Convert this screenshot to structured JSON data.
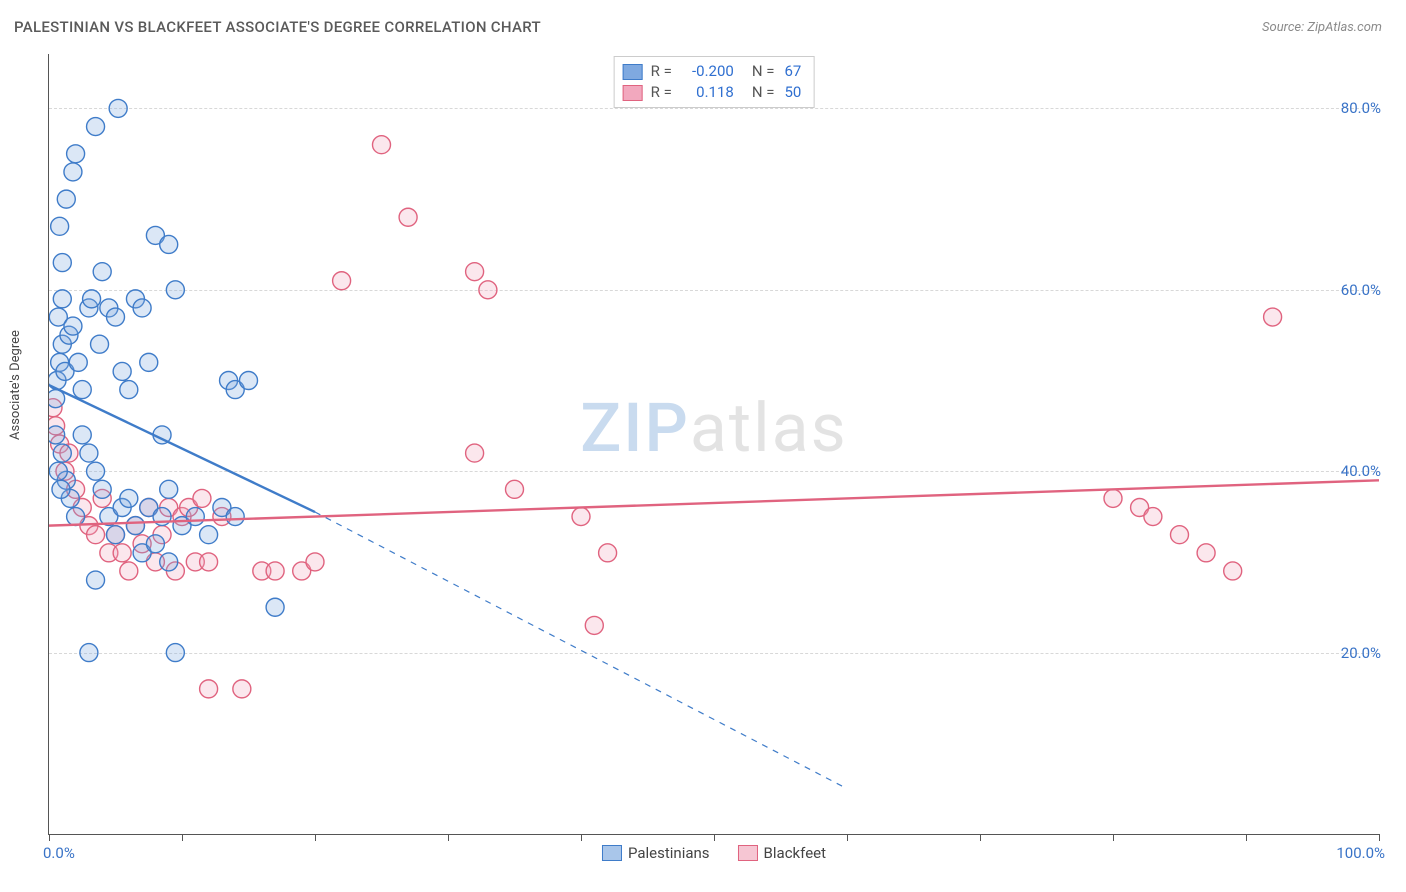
{
  "title": "PALESTINIAN VS BLACKFEET ASSOCIATE'S DEGREE CORRELATION CHART",
  "source": "Source: ZipAtlas.com",
  "ylabel": "Associate's Degree",
  "watermark": {
    "zip": "ZIP",
    "atlas": "atlas"
  },
  "chart": {
    "type": "scatter",
    "xlim": [
      0,
      100
    ],
    "ylim": [
      0,
      86
    ],
    "background_color": "#ffffff",
    "grid_color": "#d8d8d8",
    "grid_dash": "4,4",
    "yticks": [
      20,
      40,
      60,
      80
    ],
    "ytick_labels": [
      "20.0%",
      "40.0%",
      "60.0%",
      "80.0%"
    ],
    "xtick_positions": [
      0,
      10,
      20,
      30,
      40,
      50,
      60,
      70,
      80,
      90,
      100
    ],
    "xaxis_left_label": "0.0%",
    "xaxis_right_label": "100.0%",
    "marker_radius": 9,
    "marker_fill_opacity": 0.28,
    "marker_stroke_width": 1.4,
    "trend_line_width": 2.4,
    "trend_dash_width": 1.2,
    "series": [
      {
        "name": "Palestinians",
        "color_fill": "#7fa9e0",
        "color_stroke": "#3f7cc9",
        "r_value": "-0.200",
        "n_value": "67",
        "trend_solid": {
          "x1": 0,
          "y1": 49.5,
          "x2": 20,
          "y2": 35.5
        },
        "trend_dash": {
          "x1": 20,
          "y1": 35.5,
          "x2": 60,
          "y2": 5.0
        },
        "points": [
          [
            0.6,
            50
          ],
          [
            0.8,
            52
          ],
          [
            1.0,
            54
          ],
          [
            1.2,
            51
          ],
          [
            0.5,
            48
          ],
          [
            1.5,
            55
          ],
          [
            0.7,
            57
          ],
          [
            1.0,
            59
          ],
          [
            1.8,
            56
          ],
          [
            2.2,
            52
          ],
          [
            2.5,
            49
          ],
          [
            3.0,
            58
          ],
          [
            3.2,
            59
          ],
          [
            3.8,
            54
          ],
          [
            4.0,
            62
          ],
          [
            4.5,
            58
          ],
          [
            5.0,
            57
          ],
          [
            5.5,
            51
          ],
          [
            6.0,
            49
          ],
          [
            6.5,
            59
          ],
          [
            7.0,
            58
          ],
          [
            7.5,
            52
          ],
          [
            8.0,
            66
          ],
          [
            9.0,
            65
          ],
          [
            9.5,
            60
          ],
          [
            3.5,
            78
          ],
          [
            5.2,
            80
          ],
          [
            1.3,
            70
          ],
          [
            1.8,
            73
          ],
          [
            2.0,
            75
          ],
          [
            0.8,
            67
          ],
          [
            1.0,
            63
          ],
          [
            2.5,
            44
          ],
          [
            3.0,
            42
          ],
          [
            3.5,
            40
          ],
          [
            4.0,
            38
          ],
          [
            4.5,
            35
          ],
          [
            5.0,
            33
          ],
          [
            5.5,
            36
          ],
          [
            6.0,
            37
          ],
          [
            6.5,
            34
          ],
          [
            7.0,
            31
          ],
          [
            7.5,
            36
          ],
          [
            8.0,
            32
          ],
          [
            8.5,
            35
          ],
          [
            9.0,
            30
          ],
          [
            1.0,
            42
          ],
          [
            1.3,
            39
          ],
          [
            1.6,
            37
          ],
          [
            2.0,
            35
          ],
          [
            0.5,
            44
          ],
          [
            0.7,
            40
          ],
          [
            0.9,
            38
          ],
          [
            3.0,
            20
          ],
          [
            9.5,
            20
          ],
          [
            3.5,
            28
          ],
          [
            13.5,
            50
          ],
          [
            14.0,
            49
          ],
          [
            15.0,
            50
          ],
          [
            9.0,
            38
          ],
          [
            10.0,
            34
          ],
          [
            11.0,
            35
          ],
          [
            12.0,
            33
          ],
          [
            13.0,
            36
          ],
          [
            14.0,
            35
          ],
          [
            17.0,
            25
          ],
          [
            8.5,
            44
          ]
        ]
      },
      {
        "name": "Blackfeet",
        "color_fill": "#f2a8be",
        "color_stroke": "#e0637f",
        "r_value": "0.118",
        "n_value": "50",
        "trend_solid": {
          "x1": 0,
          "y1": 34.0,
          "x2": 100,
          "y2": 39.0
        },
        "trend_dash": null,
        "points": [
          [
            0.3,
            47
          ],
          [
            0.5,
            45
          ],
          [
            0.8,
            43
          ],
          [
            1.2,
            40
          ],
          [
            1.5,
            42
          ],
          [
            2.0,
            38
          ],
          [
            2.5,
            36
          ],
          [
            3.0,
            34
          ],
          [
            3.5,
            33
          ],
          [
            4.0,
            37
          ],
          [
            4.5,
            31
          ],
          [
            5.0,
            33
          ],
          [
            5.5,
            31
          ],
          [
            6.0,
            29
          ],
          [
            6.5,
            34
          ],
          [
            7.0,
            32
          ],
          [
            7.5,
            36
          ],
          [
            8.0,
            30
          ],
          [
            8.5,
            33
          ],
          [
            9.0,
            36
          ],
          [
            9.5,
            29
          ],
          [
            10.0,
            35
          ],
          [
            11.0,
            30
          ],
          [
            12.0,
            30
          ],
          [
            13.0,
            35
          ],
          [
            16.0,
            29
          ],
          [
            17.0,
            29
          ],
          [
            19.0,
            29
          ],
          [
            20.0,
            30
          ],
          [
            12.0,
            16
          ],
          [
            14.5,
            16
          ],
          [
            22.0,
            61
          ],
          [
            25.0,
            76
          ],
          [
            27.0,
            68
          ],
          [
            32.0,
            62
          ],
          [
            33.0,
            60
          ],
          [
            32.0,
            42
          ],
          [
            35.0,
            38
          ],
          [
            40.0,
            35
          ],
          [
            41.0,
            23
          ],
          [
            42.0,
            31
          ],
          [
            80.0,
            37
          ],
          [
            82.0,
            36
          ],
          [
            83.0,
            35
          ],
          [
            85.0,
            33
          ],
          [
            87.0,
            31
          ],
          [
            89.0,
            29
          ],
          [
            92.0,
            57
          ],
          [
            10.5,
            36
          ],
          [
            11.5,
            37
          ]
        ]
      }
    ]
  },
  "bottom_legend": [
    {
      "label": "Palestinians",
      "fill": "#a9c6ea",
      "stroke": "#3f7cc9"
    },
    {
      "label": "Blackfeet",
      "fill": "#f6c6d3",
      "stroke": "#e0637f"
    }
  ]
}
